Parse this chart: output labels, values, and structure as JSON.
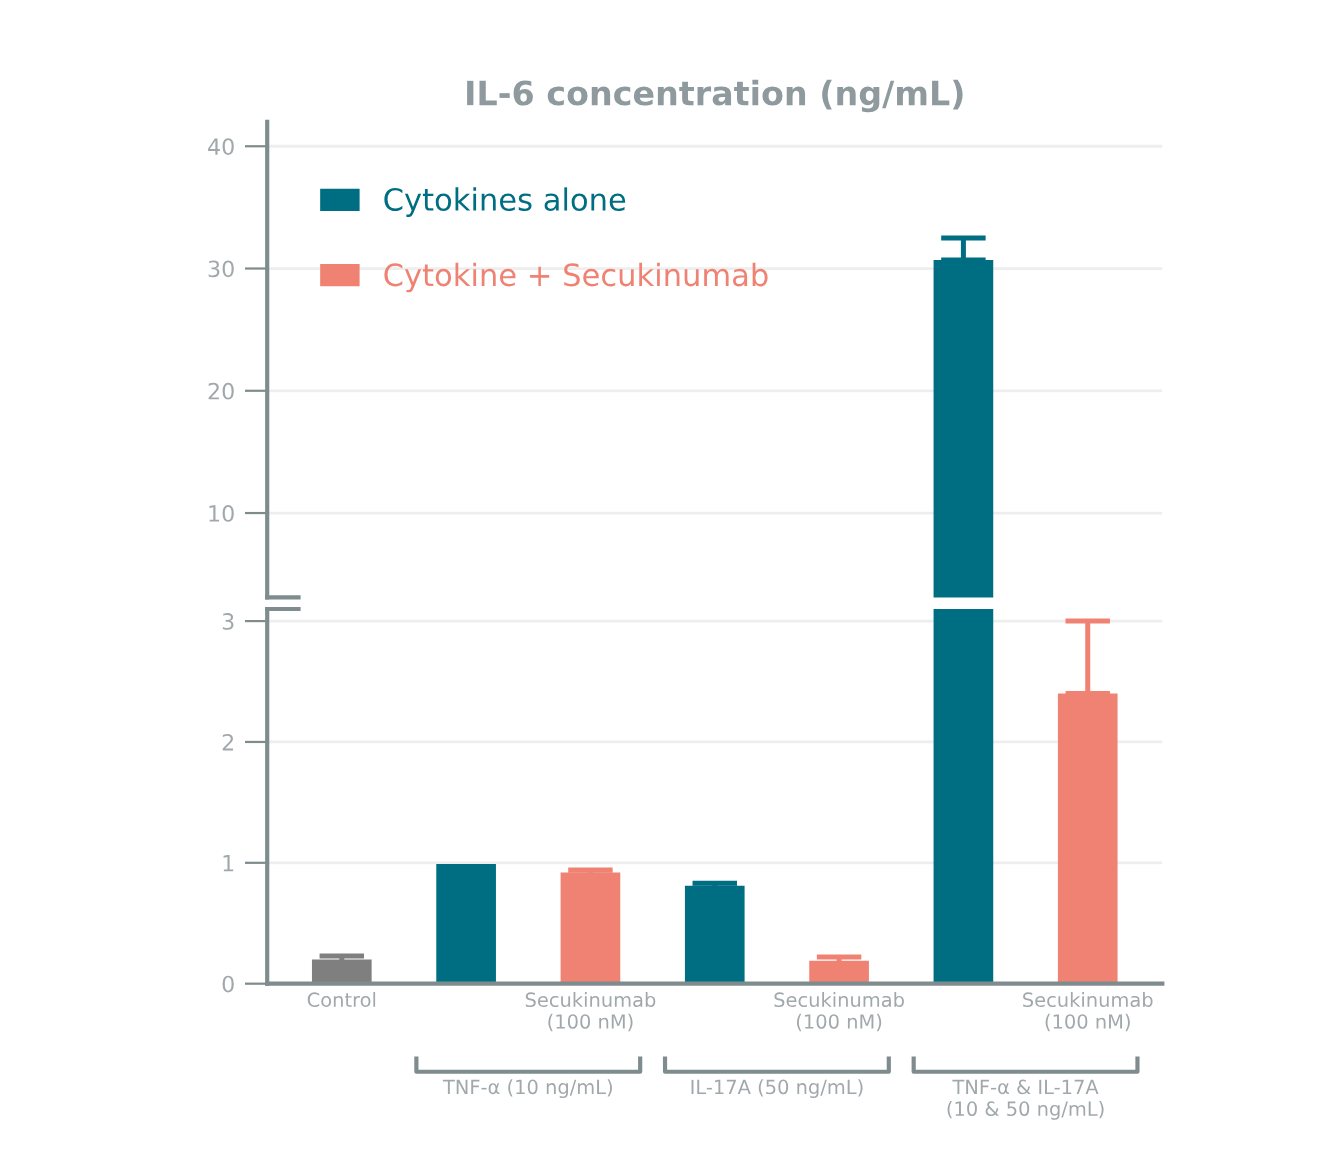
{
  "chart_data": [
    {
      "type": "bar",
      "title": "IL-6 concentration (ng/mL)",
      "categories": [
        null,
        null,
        null,
        null,
        null,
        null,
        null
      ],
      "series": [
        {
          "name": "Cytokines alone",
          "color": "#006e82",
          "values": [
            null,
            null,
            null,
            null,
            null,
            30.7,
            null
          ],
          "errors": [
            null,
            null,
            null,
            null,
            null,
            [
              30.7,
              32.5
            ],
            null
          ]
        },
        {
          "name": "Cytokine + Secukinumab",
          "color": "#ef8272",
          "values": [
            null,
            null,
            null,
            null,
            null,
            null,
            null
          ]
        }
      ],
      "ylim": [
        3.1,
        42
      ],
      "yticks": [
        10,
        20,
        30,
        40
      ],
      "grid": "y",
      "legend": "top left",
      "tick_labels": "y"
    },
    {
      "type": "bar",
      "categories": [
        "Control",
        null,
        "Secukinumab\n(100 nM)",
        null,
        "Secukinumab\n(100 nM)",
        null,
        "Secukinumab\n(100 nM)"
      ],
      "series": [
        {
          "color": "#7f7f7f",
          "values": [
            0.2,
            null,
            null,
            null,
            null,
            null,
            null
          ],
          "errors": [
            0.03,
            null,
            null,
            null,
            null,
            null,
            null
          ]
        },
        {
          "color": "#006e82",
          "values": [
            null,
            0.99,
            null,
            0.81,
            null,
            3.1,
            null
          ],
          "errors": [
            null,
            null,
            null,
            0.02,
            null,
            null,
            null
          ]
        },
        {
          "color": "#ef8272",
          "values": [
            null,
            null,
            0.92,
            null,
            0.19,
            null,
            2.4
          ],
          "errors": [
            null,
            null,
            0.02,
            null,
            0.03,
            null,
            [
              2.4,
              3.0
            ]
          ]
        }
      ],
      "ylim": [
        0,
        3.1
      ],
      "yticks": [
        0,
        1,
        2,
        3
      ],
      "grid": "y",
      "annotations": [
        "TNF-α (10 ng/mL)",
        "IL-17A (50 ng/mL)",
        "TNF-α & IL-17A\n(10 & 50 ng/mL)"
      ]
    }
  ]
}
